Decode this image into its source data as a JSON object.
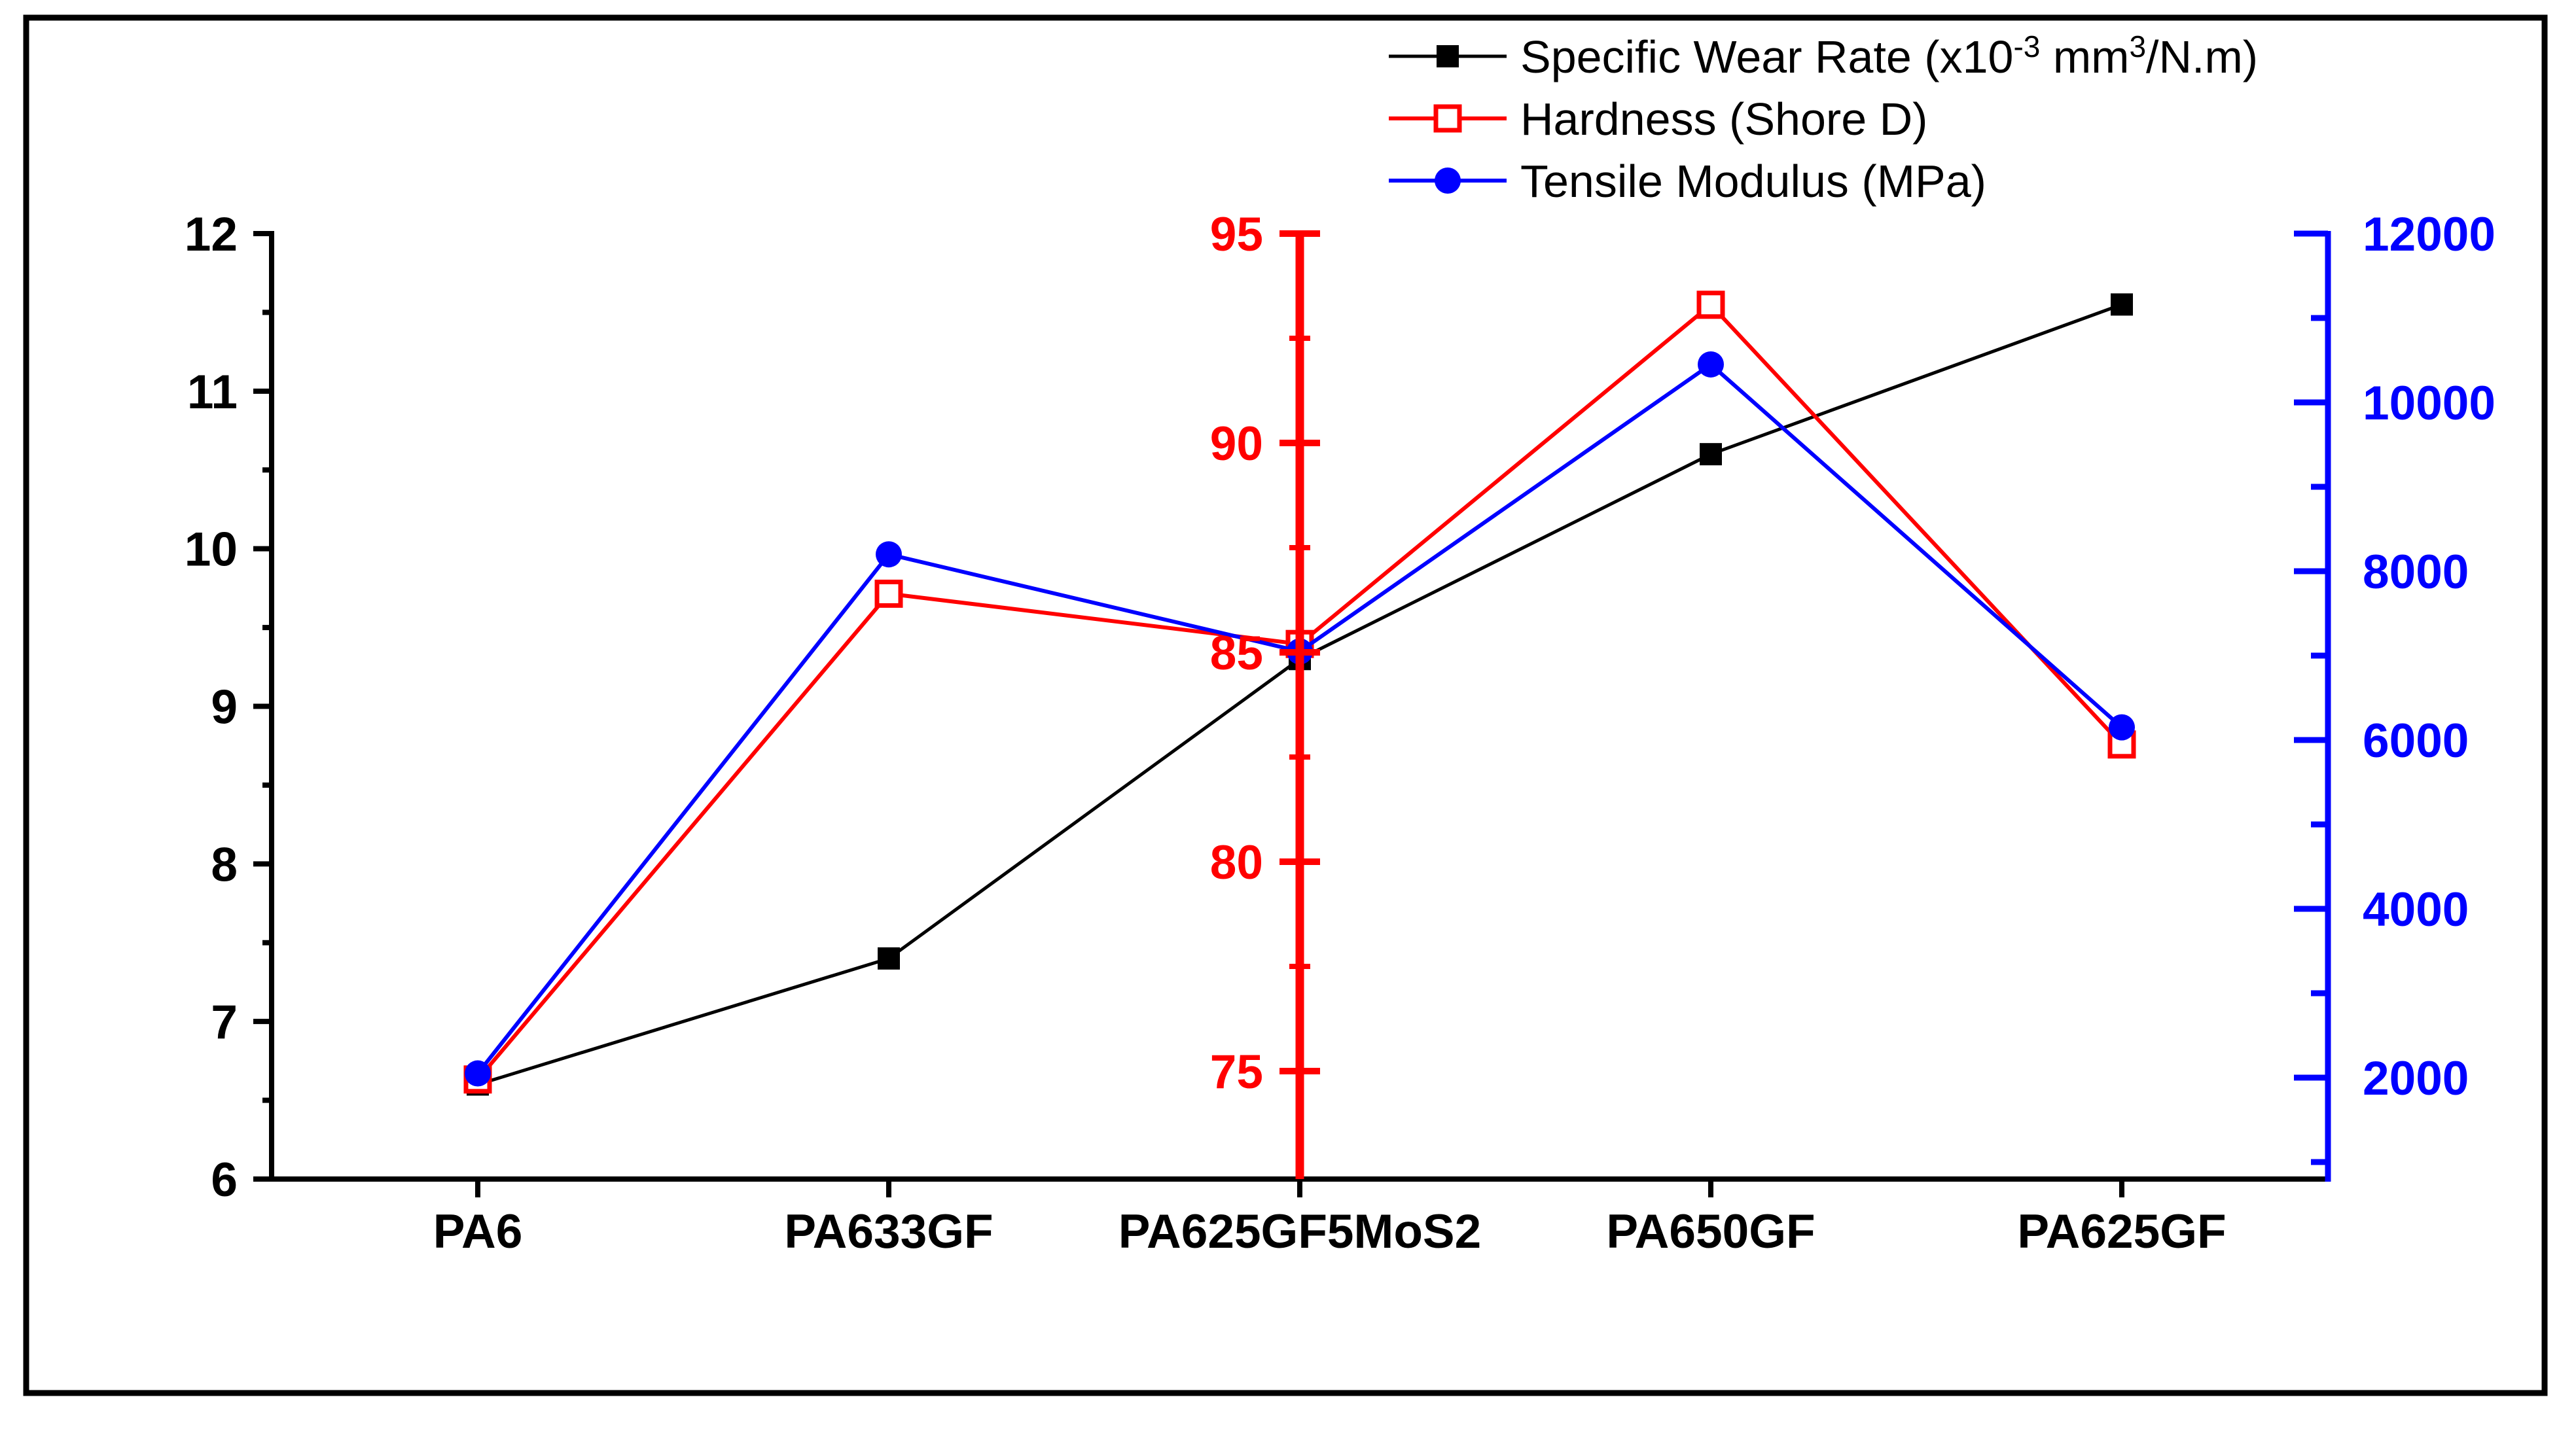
{
  "figure": {
    "background": "#ffffff",
    "border_color": "#000000"
  },
  "chart_data": {
    "type": "line",
    "categories": [
      "PA6",
      "PA633GF",
      "PA625GF5MoS2",
      "PA650GF",
      "PA625GF"
    ],
    "series": [
      {
        "name": "Specific Wear Rate (x10⁻³ mm³/N.m)",
        "axis": "left",
        "color": "#000000",
        "marker": "filled-square",
        "values": [
          6.6,
          7.4,
          9.3,
          10.6,
          11.55
        ]
      },
      {
        "name": "Hardness (Shore D)",
        "axis": "middle",
        "color": "#ff0000",
        "marker": "open-square",
        "values": [
          74.8,
          86.4,
          85.2,
          93.3,
          82.8
        ]
      },
      {
        "name": "Tensile Modulus (MPa)",
        "axis": "right",
        "color": "#0000ff",
        "marker": "filled-circle",
        "values": [
          2050,
          8200,
          7050,
          10450,
          6150
        ]
      }
    ],
    "axes": {
      "left": {
        "color": "#000000",
        "labeled_min": 6,
        "labeled_max": 12,
        "major_step": 1,
        "minor_step": 0.5,
        "tick_labels": [
          "6",
          "7",
          "8",
          "9",
          "10",
          "11",
          "12"
        ]
      },
      "middle": {
        "color": "#ff0000",
        "position_category": "PA625GF5MoS2",
        "labeled_min": 75,
        "labeled_max": 95,
        "major_step": 5,
        "minor_step": 2.5,
        "tick_labels": [
          "75",
          "80",
          "85",
          "90",
          "95"
        ]
      },
      "right": {
        "color": "#0000ff",
        "labeled_min": 2000,
        "labeled_max": 12000,
        "major_step": 2000,
        "minor_step": 1000,
        "tick_labels": [
          "2000",
          "4000",
          "6000",
          "8000",
          "10000",
          "12000"
        ]
      }
    },
    "grid": false,
    "legend_position": "top-center"
  },
  "legend": {
    "entries": [
      {
        "label": "Specific Wear Rate (x10⁻³ mm³/N.m)",
        "color": "#000000",
        "marker": "filled-square",
        "label_parts": [
          {
            "t": "Specific Wear Rate (x10"
          },
          {
            "t": "-3",
            "sup": true
          },
          {
            "t": " mm"
          },
          {
            "t": "3",
            "sup": true
          },
          {
            "t": "/N.m)"
          }
        ]
      },
      {
        "label": "Hardness (Shore D)",
        "color": "#ff0000",
        "marker": "open-square",
        "label_parts": [
          {
            "t": "Hardness (Shore D)"
          }
        ]
      },
      {
        "label": "Tensile Modulus (MPa)",
        "color": "#0000ff",
        "marker": "filled-circle",
        "label_parts": [
          {
            "t": "Tensile Modulus (MPa)"
          }
        ]
      }
    ]
  }
}
